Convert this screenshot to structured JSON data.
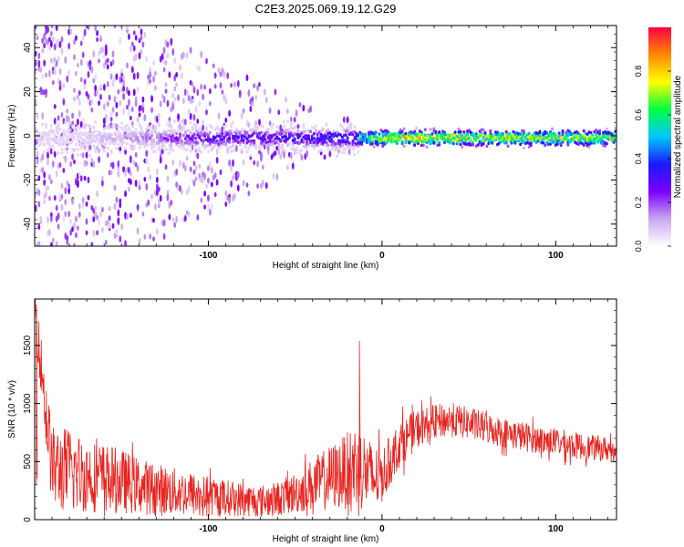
{
  "title": "C2E3.2025.069.19.12.G29",
  "colors": {
    "snr_line": "#e8231f",
    "spectrogram_background": "#ffffff",
    "colormap": [
      "#ffffff",
      "#c9a6f0",
      "#7a00ff",
      "#1a1aff",
      "#00c8ff",
      "#00ff40",
      "#ffff00",
      "#ff8800",
      "#ff0044"
    ]
  },
  "chart_data": [
    {
      "type": "heatmap",
      "title": "C2E3.2025.069.19.12.G29",
      "xlabel": "Height of straight line (km)",
      "ylabel": "Frequency (Hz)",
      "xlim": [
        -200,
        135
      ],
      "ylim": [
        -50,
        50
      ],
      "xticks": [
        -100,
        0,
        100
      ],
      "xtick_labels": [
        "-100",
        "0",
        "100"
      ],
      "yticks": [
        -40,
        -20,
        0,
        20,
        40
      ],
      "ytick_labels": [
        "-40",
        "-20",
        "0",
        "20",
        "40"
      ],
      "colorbar": {
        "label": "Normalized spectral amplitude",
        "range": [
          0,
          1
        ],
        "ticks": [
          0.0,
          0.2,
          0.4,
          0.6,
          0.8
        ],
        "tick_labels": [
          "0.0",
          "0.2",
          "0.4",
          "0.6",
          "0.8"
        ]
      },
      "signal_band": {
        "center_hz": -1,
        "half_width_hz": 2
      },
      "profile": [
        {
          "x": -200,
          "broad_spread_hz": 50,
          "noise_density": 0.55,
          "band_amplitude": 0.0
        },
        {
          "x": -150,
          "broad_spread_hz": 50,
          "noise_density": 0.5,
          "band_amplitude": 0.12
        },
        {
          "x": -120,
          "broad_spread_hz": 45,
          "noise_density": 0.4,
          "band_amplitude": 0.22
        },
        {
          "x": -100,
          "broad_spread_hz": 35,
          "noise_density": 0.3,
          "band_amplitude": 0.3
        },
        {
          "x": -80,
          "broad_spread_hz": 28,
          "noise_density": 0.22,
          "band_amplitude": 0.3
        },
        {
          "x": -60,
          "broad_spread_hz": 20,
          "noise_density": 0.15,
          "band_amplitude": 0.32
        },
        {
          "x": -40,
          "broad_spread_hz": 12,
          "noise_density": 0.08,
          "band_amplitude": 0.35
        },
        {
          "x": -20,
          "broad_spread_hz": 8,
          "noise_density": 0.05,
          "band_amplitude": 0.4
        },
        {
          "x": -10,
          "broad_spread_hz": 5,
          "noise_density": 0.03,
          "band_amplitude": 0.55
        },
        {
          "x": 0,
          "broad_spread_hz": 4,
          "noise_density": 0.02,
          "band_amplitude": 0.75
        },
        {
          "x": 40,
          "broad_spread_hz": 4,
          "noise_density": 0.02,
          "band_amplitude": 0.75
        },
        {
          "x": 80,
          "broad_spread_hz": 4,
          "noise_density": 0.02,
          "band_amplitude": 0.72
        },
        {
          "x": 135,
          "broad_spread_hz": 4,
          "noise_density": 0.02,
          "band_amplitude": 0.7
        }
      ]
    },
    {
      "type": "line",
      "xlabel": "Height of straight line (km)",
      "ylabel": "SNR (10 * v/v)",
      "xlim": [
        -200,
        135
      ],
      "ylim": [
        0,
        1900
      ],
      "xticks": [
        -100,
        0,
        100
      ],
      "xtick_labels": [
        "-100",
        "0",
        "100"
      ],
      "yticks": [
        0,
        500,
        1000,
        1500
      ],
      "ytick_labels": [
        "0",
        "500",
        "1000",
        "1500"
      ],
      "series": [
        {
          "x": [
            -200,
            -190,
            -180,
            -170,
            -160,
            -150,
            -140,
            -130,
            -120,
            -110,
            -100,
            -90,
            -80,
            -70,
            -60,
            -50,
            -40,
            -30,
            -20,
            -15,
            -10,
            -5,
            0,
            10,
            20,
            30,
            40,
            50,
            60,
            70,
            80,
            90,
            100,
            110,
            120,
            135
          ],
          "y": [
            1850,
            450,
            420,
            380,
            360,
            330,
            290,
            260,
            240,
            220,
            200,
            190,
            170,
            160,
            180,
            230,
            300,
            360,
            420,
            470,
            420,
            350,
            380,
            650,
            780,
            840,
            860,
            830,
            790,
            750,
            720,
            690,
            670,
            640,
            620,
            600
          ],
          "spread": [
            200,
            360,
            380,
            320,
            300,
            280,
            240,
            230,
            210,
            190,
            170,
            160,
            150,
            140,
            150,
            180,
            230,
            280,
            330,
            380,
            350,
            300,
            240,
            200,
            170,
            150,
            150,
            140,
            140,
            130,
            130,
            120,
            120,
            120,
            110,
            110
          ]
        }
      ],
      "annotations": [
        {
          "x": -199,
          "y": 1850,
          "label": ""
        },
        {
          "x": -13,
          "y": 1540,
          "label": ""
        }
      ]
    }
  ]
}
